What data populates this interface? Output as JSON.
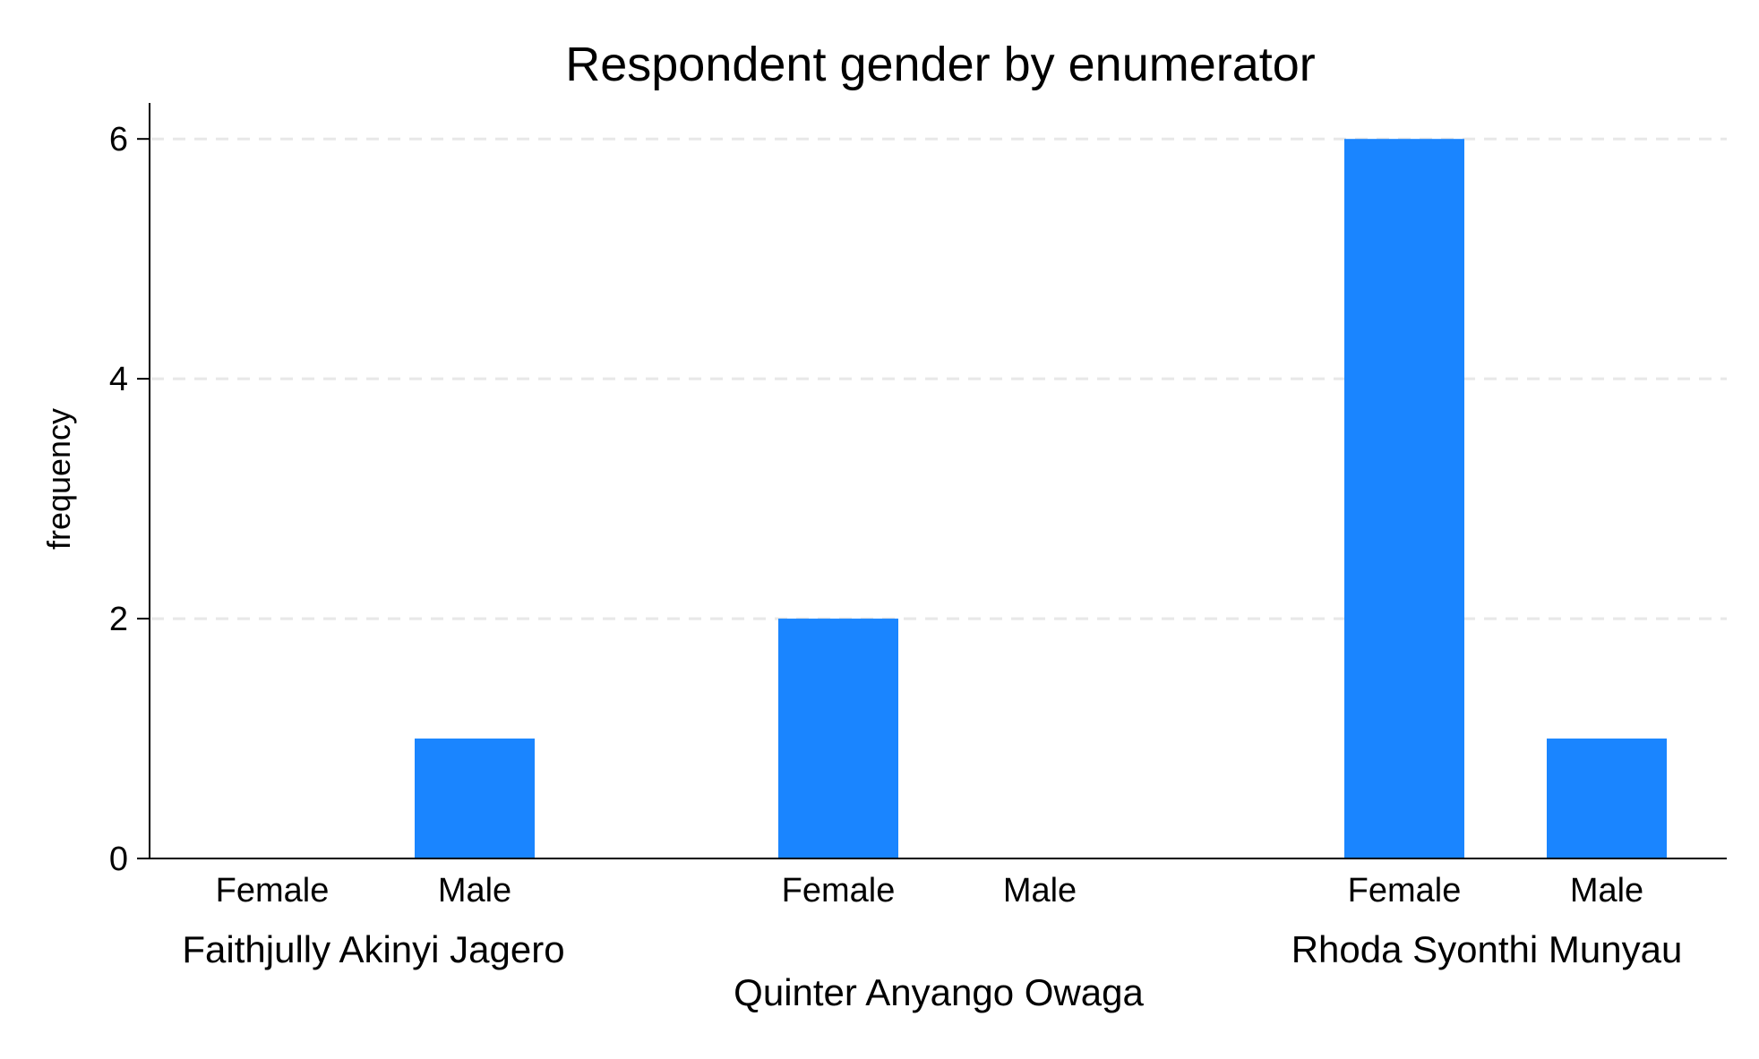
{
  "chart_data": {
    "type": "bar",
    "title": "Respondent gender by enumerator",
    "xlabel": "",
    "ylabel": "frequency",
    "ylim": [
      0,
      6.3
    ],
    "yticks": [
      0,
      2,
      4,
      6
    ],
    "grid": true,
    "groups": [
      {
        "name": "Faithjully Akinyi Jagero",
        "categories": [
          "Female",
          "Male"
        ],
        "values": [
          0,
          1
        ]
      },
      {
        "name": "Quinter Anyango Owaga",
        "categories": [
          "Female",
          "Male"
        ],
        "values": [
          2,
          0
        ]
      },
      {
        "name": "Rhoda Syonthi Munyau",
        "categories": [
          "Female",
          "Male"
        ],
        "values": [
          6,
          1
        ]
      }
    ],
    "bar_color": "#1a85ff",
    "grid_color": "#e8e8e8"
  }
}
